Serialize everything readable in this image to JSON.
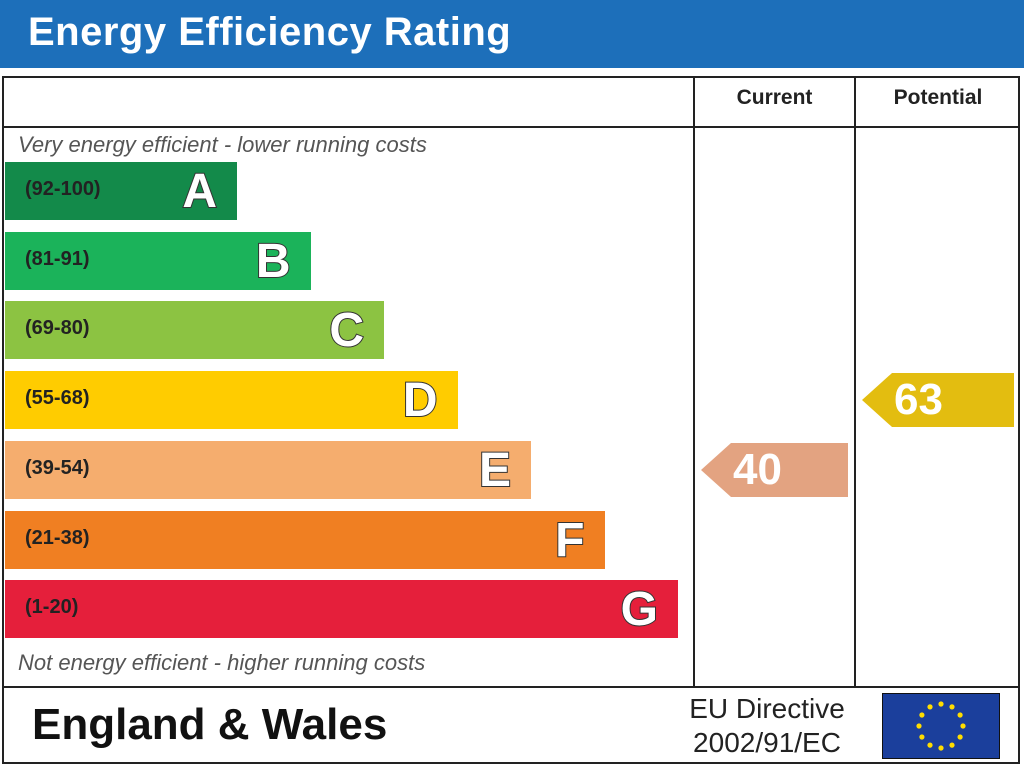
{
  "title": "Energy Efficiency Rating",
  "columns": {
    "current": "Current",
    "potential": "Potential"
  },
  "notes": {
    "top": "Very energy efficient - lower running costs",
    "bottom": "Not energy efficient - higher running costs"
  },
  "footer": {
    "region": "England & Wales",
    "directive_line1": "EU Directive",
    "directive_line2": "2002/91/EC",
    "flag_icon": "eu-flag-icon"
  },
  "chart_data": {
    "type": "bar",
    "bands": [
      {
        "letter": "A",
        "range": "(92-100)",
        "color": "#138a4a"
      },
      {
        "letter": "B",
        "range": "(81-91)",
        "color": "#1bb35a"
      },
      {
        "letter": "C",
        "range": "(69-80)",
        "color": "#8cc342"
      },
      {
        "letter": "D",
        "range": "(55-68)",
        "color": "#ffcc00"
      },
      {
        "letter": "E",
        "range": "(39-54)",
        "color": "#f5ad6e"
      },
      {
        "letter": "F",
        "range": "(21-38)",
        "color": "#f07f22"
      },
      {
        "letter": "G",
        "range": "(1-20)",
        "color": "#e51f3b"
      }
    ],
    "current": {
      "value": 40,
      "band": "E",
      "color": "#e3a381"
    },
    "potential": {
      "value": 63,
      "band": "D",
      "color": "#e3bd10"
    }
  }
}
